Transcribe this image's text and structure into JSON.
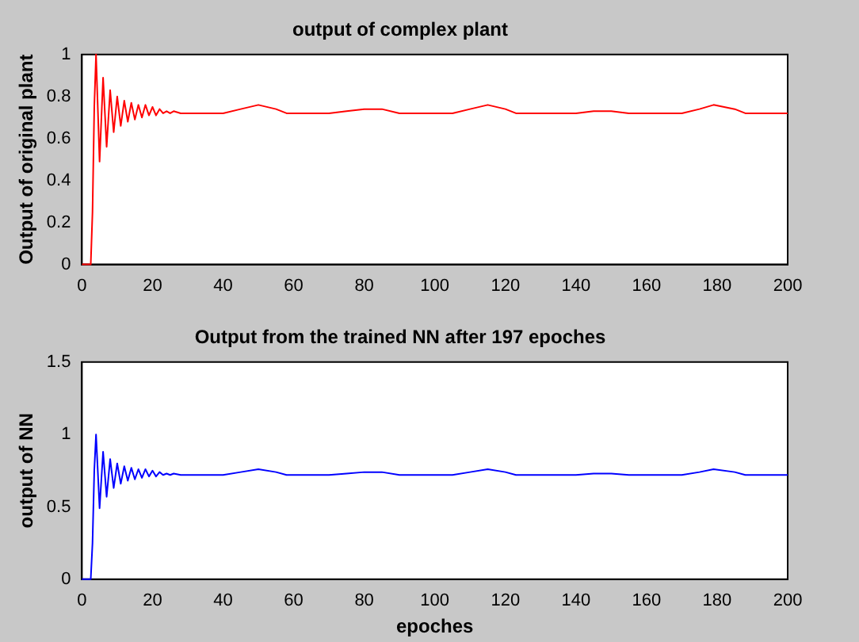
{
  "chart_data": [
    {
      "type": "line",
      "title": "output of complex plant",
      "ylabel": "Output of original plant",
      "xlim": [
        0,
        200
      ],
      "xticks": [
        0,
        20,
        40,
        60,
        80,
        100,
        120,
        140,
        160,
        180,
        200
      ],
      "ylim": [
        0,
        1
      ],
      "yticks": [
        0,
        0.2,
        0.4,
        0.6,
        0.8,
        1
      ],
      "grid": false,
      "legend": false,
      "marker": "none",
      "x": [
        0,
        2.5,
        3,
        3.5,
        4,
        5,
        6,
        7,
        8,
        9,
        10,
        11,
        12,
        13,
        14,
        15,
        16,
        17,
        18,
        19,
        20,
        21,
        22,
        23,
        24,
        25,
        26,
        28,
        30,
        40,
        45,
        50,
        55,
        58,
        70,
        75,
        80,
        85,
        90,
        105,
        110,
        115,
        120,
        123,
        140,
        145,
        150,
        155,
        170,
        175,
        179,
        185,
        188,
        200
      ],
      "series": [
        {
          "color": "#ff0000",
          "values": [
            0,
            0,
            0.25,
            0.75,
            1.0,
            0.49,
            0.89,
            0.56,
            0.83,
            0.63,
            0.8,
            0.66,
            0.78,
            0.68,
            0.77,
            0.69,
            0.76,
            0.7,
            0.76,
            0.71,
            0.75,
            0.71,
            0.74,
            0.72,
            0.73,
            0.72,
            0.73,
            0.72,
            0.72,
            0.72,
            0.74,
            0.76,
            0.74,
            0.72,
            0.72,
            0.73,
            0.74,
            0.74,
            0.72,
            0.72,
            0.74,
            0.76,
            0.74,
            0.72,
            0.72,
            0.73,
            0.73,
            0.72,
            0.72,
            0.74,
            0.76,
            0.74,
            0.72,
            0.72
          ]
        }
      ]
    },
    {
      "type": "line",
      "title": "Output from the trained NN after 197 epoches",
      "xlabel": "epoches",
      "ylabel": "output of NN",
      "xlim": [
        0,
        200
      ],
      "xticks": [
        0,
        20,
        40,
        60,
        80,
        100,
        120,
        140,
        160,
        180,
        200
      ],
      "ylim": [
        0,
        1.5
      ],
      "yticks": [
        0,
        0.5,
        1,
        1.5
      ],
      "grid": false,
      "legend": false,
      "marker": "none",
      "x": [
        0,
        2.5,
        3,
        3.5,
        4,
        5,
        6,
        7,
        8,
        9,
        10,
        11,
        12,
        13,
        14,
        15,
        16,
        17,
        18,
        19,
        20,
        21,
        22,
        23,
        24,
        25,
        26,
        28,
        30,
        40,
        45,
        50,
        55,
        58,
        70,
        75,
        80,
        85,
        90,
        105,
        110,
        115,
        120,
        123,
        140,
        145,
        150,
        155,
        170,
        175,
        179,
        185,
        188,
        200
      ],
      "series": [
        {
          "color": "#0000ff",
          "values": [
            0,
            0,
            0.25,
            0.75,
            1.0,
            0.49,
            0.88,
            0.57,
            0.83,
            0.63,
            0.8,
            0.66,
            0.78,
            0.68,
            0.77,
            0.69,
            0.76,
            0.7,
            0.76,
            0.71,
            0.75,
            0.71,
            0.74,
            0.72,
            0.73,
            0.72,
            0.73,
            0.72,
            0.72,
            0.72,
            0.74,
            0.76,
            0.74,
            0.72,
            0.72,
            0.73,
            0.74,
            0.74,
            0.72,
            0.72,
            0.74,
            0.76,
            0.74,
            0.72,
            0.72,
            0.73,
            0.73,
            0.72,
            0.72,
            0.74,
            0.76,
            0.74,
            0.72,
            0.72
          ]
        }
      ]
    }
  ]
}
